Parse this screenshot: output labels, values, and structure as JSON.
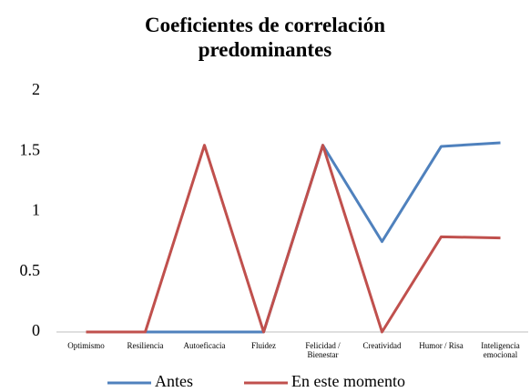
{
  "chart_data": {
    "type": "line",
    "title": "Coeficientes de correlación predominantes",
    "categories": [
      "Optimismo",
      "Resiliencia",
      "Autoeficacia",
      "Fluidez",
      "Felicidad / Bienestar",
      "Creatividad",
      "Humor / Risa",
      "Inteligencia emocional"
    ],
    "series": [
      {
        "name": "Antes",
        "color": "#4f81bd",
        "values": [
          0,
          0,
          0,
          0,
          1.55,
          0.75,
          1.54,
          1.57
        ]
      },
      {
        "name": "En este momento",
        "color": "#c0504d",
        "values": [
          0,
          0,
          1.55,
          0,
          1.55,
          0,
          0.79,
          0.78
        ]
      }
    ],
    "ylim": [
      0,
      2
    ],
    "yticks": [
      0,
      0.5,
      1,
      1.5,
      2
    ],
    "grid": false,
    "legend": "bottom"
  }
}
